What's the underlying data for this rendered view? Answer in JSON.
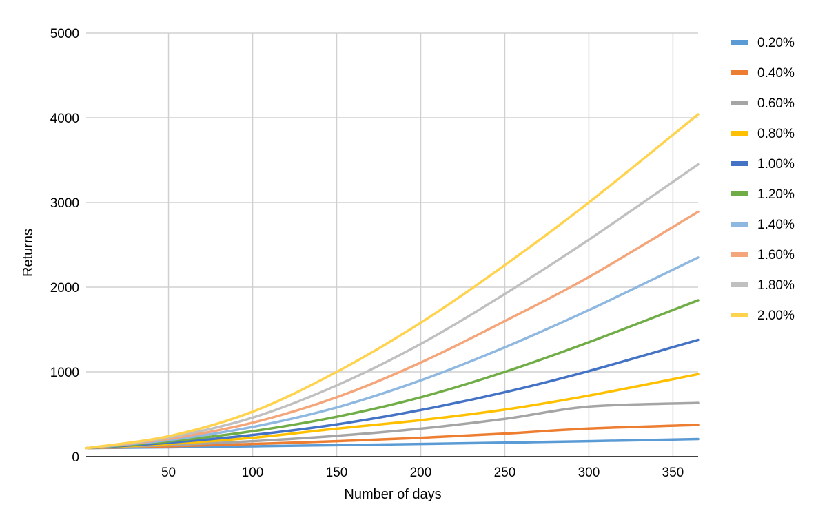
{
  "chart_data": {
    "type": "line",
    "title": "",
    "xlabel": "Number of days",
    "ylabel": "Returns",
    "xlim": [
      1,
      365
    ],
    "ylim": [
      0,
      5000
    ],
    "x_ticks": [
      50,
      100,
      150,
      200,
      250,
      300,
      350
    ],
    "y_ticks": [
      0,
      1000,
      2000,
      3000,
      4000,
      5000
    ],
    "grid": true,
    "legend_position": "right",
    "x": [
      1,
      50,
      100,
      150,
      200,
      250,
      300,
      365
    ],
    "series": [
      {
        "name": "0.20%",
        "color": "#5b9bd5",
        "values": [
          100,
          110,
          122,
          135,
          149,
          165,
          182,
          207
        ]
      },
      {
        "name": "0.40%",
        "color": "#ed7d31",
        "values": [
          100,
          122,
          149,
          182,
          222,
          271,
          331,
          374
        ]
      },
      {
        "name": "0.60%",
        "color": "#a5a5a5",
        "values": [
          100,
          135,
          182,
          245,
          330,
          445,
          590,
          633
        ]
      },
      {
        "name": "0.80%",
        "color": "#ffc000",
        "values": [
          100,
          149,
          222,
          330,
          430,
          555,
          720,
          973
        ]
      },
      {
        "name": "1.00%",
        "color": "#4472c4",
        "values": [
          100,
          164,
          255,
          380,
          550,
          760,
          1010,
          1378
        ]
      },
      {
        "name": "1.20%",
        "color": "#70ad47",
        "values": [
          100,
          180,
          300,
          470,
          700,
          1000,
          1350,
          1845
        ]
      },
      {
        "name": "1.40%",
        "color": "#8fb8e0",
        "values": [
          100,
          195,
          350,
          580,
          900,
          1290,
          1730,
          2350
        ]
      },
      {
        "name": "1.60%",
        "color": "#f4a57a",
        "values": [
          100,
          210,
          400,
          700,
          1110,
          1600,
          2120,
          2890
        ]
      },
      {
        "name": "1.80%",
        "color": "#c0c0c0",
        "values": [
          100,
          225,
          460,
          840,
          1330,
          1920,
          2560,
          3450
        ]
      },
      {
        "name": "2.00%",
        "color": "#ffd34e",
        "values": [
          100,
          240,
          530,
          1000,
          1580,
          2260,
          3000,
          4040
        ]
      }
    ]
  }
}
